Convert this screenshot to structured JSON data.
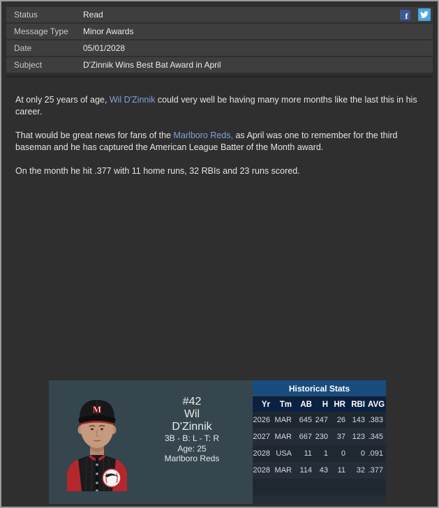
{
  "header": {
    "rows": [
      {
        "label": "Status",
        "value": "Read"
      },
      {
        "label": "Message Type",
        "value": "Minor Awards"
      },
      {
        "label": "Date",
        "value": "05/01/2028"
      },
      {
        "label": "Subject",
        "value": "D'Zinnik Wins Best Bat Award in April"
      }
    ],
    "social": {
      "facebook_glyph": "f",
      "twitter_icon": "twitter-bird"
    }
  },
  "body": {
    "p1": {
      "pre": "At only 25 years of age, ",
      "link": "Wil D'Zinnik",
      "post": " could very well be having many more months like the last this in his career."
    },
    "p2": {
      "pre": "That would be great news for fans of the ",
      "link": "Marlboro Reds,",
      "post": " as April was one to remember for the third baseman and he has captured the American League Batter of the Month award."
    },
    "p3": {
      "text": "On the month he hit .377 with 11 home runs, 32 RBIs and 23 runs scored."
    }
  },
  "player_card": {
    "number": "#42",
    "first_name": "Wil",
    "last_name": "D'Zinnik",
    "position_line": "3B - B: L - T: R",
    "age_line": "Age: 25",
    "team": "Marlboro Reds"
  },
  "stats": {
    "title": "Historical Stats",
    "columns": [
      "Yr",
      "Tm",
      "AB",
      "H",
      "HR",
      "RBI",
      "AVG"
    ],
    "rows": [
      [
        "2026",
        "MAR",
        "645",
        "247",
        "26",
        "143",
        ".383"
      ],
      [
        "2027",
        "MAR",
        "667",
        "230",
        "37",
        "123",
        ".345"
      ],
      [
        "2028",
        "USA",
        "11",
        "1",
        "0",
        "0",
        ".091"
      ],
      [
        "2028",
        "MAR",
        "114",
        "43",
        "11",
        "32",
        ".377"
      ]
    ],
    "filler_rows": 2
  },
  "colors": {
    "window_border": "#9b9b9b",
    "page_bg": "#2f2f2f",
    "header_row_bg": "#3e3e3e",
    "link": "#7fa3d9",
    "facebook": "#3b5998",
    "twitter": "#4ba6df",
    "card_bg": "#36464e",
    "stats_title_bg": "#1a4b7d",
    "stats_header_bg": "#0a2142"
  }
}
